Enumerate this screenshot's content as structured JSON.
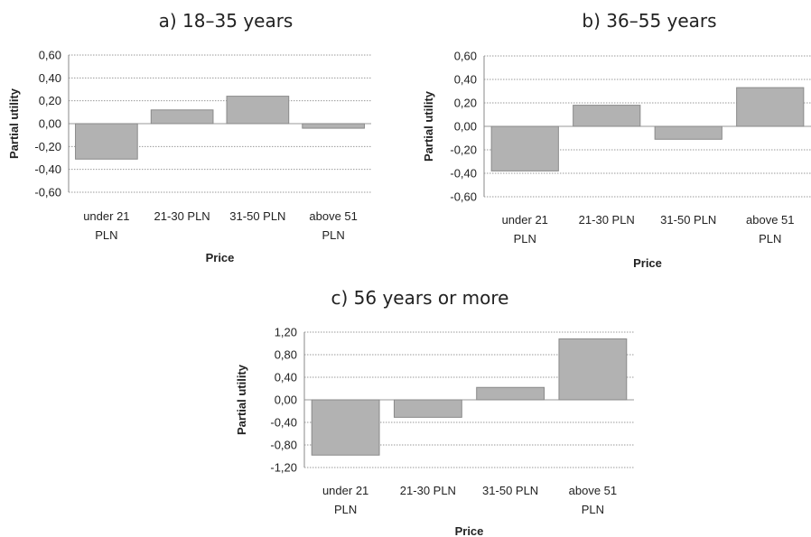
{
  "chart_data": [
    {
      "type": "bar",
      "title": "a) 18–35 years",
      "xlabel": "Price",
      "ylabel": "Partial utility",
      "categories": [
        "under 21 PLN",
        "21-30 PLN",
        "31-50 PLN",
        "above 51 PLN"
      ],
      "values": [
        -0.31,
        0.12,
        0.24,
        -0.04
      ],
      "ylim": [
        -0.6,
        0.6
      ],
      "yticks": [
        "0,60",
        "0,40",
        "0,20",
        "0,00",
        "-0,20",
        "-0,40",
        "-0,60"
      ],
      "bar_color": "#b2b2b2",
      "grid": true
    },
    {
      "type": "bar",
      "title": "b) 36–55 years",
      "xlabel": "Price",
      "ylabel": "Partial utility",
      "categories": [
        "under 21 PLN",
        "21-30 PLN",
        "31-50 PLN",
        "above 51 PLN"
      ],
      "values": [
        -0.38,
        0.18,
        -0.11,
        0.33
      ],
      "ylim": [
        -0.6,
        0.6
      ],
      "yticks": [
        "0,60",
        "0,40",
        "0,20",
        "0,00",
        "-0,20",
        "-0,40",
        "-0,60"
      ],
      "bar_color": "#b2b2b2",
      "grid": true
    },
    {
      "type": "bar",
      "title": "c) 56 years or more",
      "xlabel": "Price",
      "ylabel": "Partial utility",
      "categories": [
        "under 21 PLN",
        "21-30 PLN",
        "31-50 PLN",
        "above 51 PLN"
      ],
      "values": [
        -0.98,
        -0.31,
        0.22,
        1.08
      ],
      "ylim": [
        -1.2,
        1.2
      ],
      "yticks": [
        "1,20",
        "0,80",
        "0,40",
        "0,00",
        "-0,40",
        "-0,80",
        "-1,20"
      ],
      "bar_color": "#b2b2b2",
      "grid": true
    }
  ]
}
